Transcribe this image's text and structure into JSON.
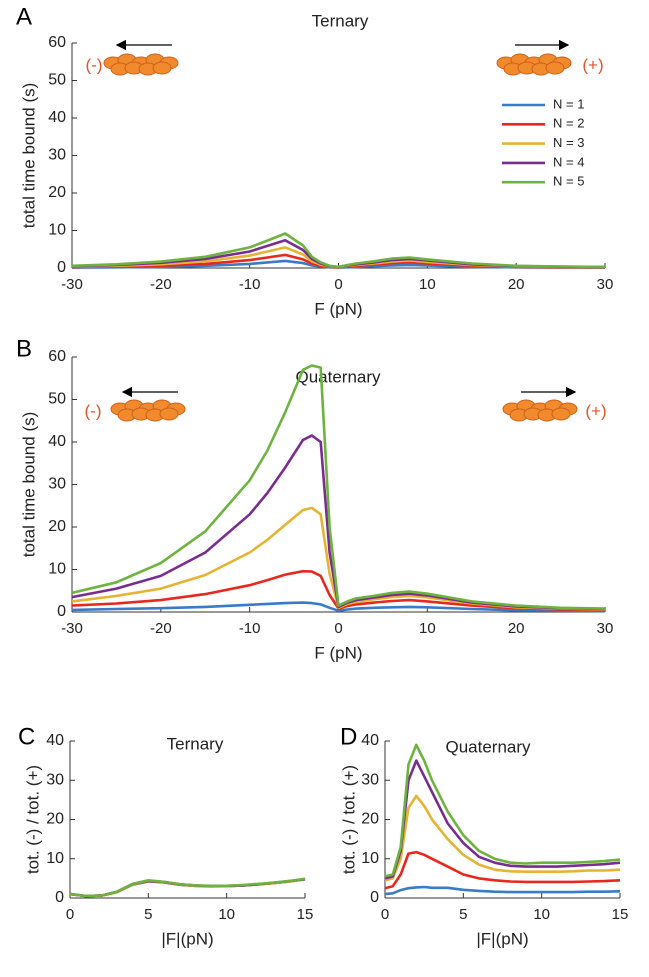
{
  "chart_data": [
    {
      "type": "line",
      "panel": "A",
      "title": "Ternary",
      "xlabel": "F (pN)",
      "ylabel": "total time bound (s)",
      "annotations": [
        "(-)",
        "(+)"
      ],
      "legend": "upper right",
      "x": [
        -30,
        -25,
        -20,
        -15,
        -10,
        -8,
        -6,
        -4,
        -3,
        -2,
        -1,
        0,
        1,
        2,
        4,
        6,
        8,
        10,
        15,
        20,
        25,
        30
      ],
      "xlim": [
        -30,
        30
      ],
      "xticks": [
        -30,
        -20,
        -10,
        0,
        10,
        20,
        30
      ],
      "ylim": [
        0,
        60
      ],
      "yticks": [
        0,
        10,
        20,
        30,
        40,
        50,
        60
      ],
      "series": [
        {
          "name": "N = 1",
          "color": "#3a7bc8",
          "values": [
            0.1,
            0.2,
            0.3,
            0.6,
            1.1,
            1.5,
            1.9,
            1.3,
            0.7,
            0.4,
            0.2,
            0.1,
            0.2,
            0.3,
            0.5,
            0.7,
            0.8,
            0.7,
            0.3,
            0.2,
            0.1,
            0.1
          ]
        },
        {
          "name": "N = 2",
          "color": "#e8281e",
          "values": [
            0.25,
            0.4,
            0.6,
            1.1,
            2.1,
            2.8,
            3.5,
            2.3,
            1.2,
            0.6,
            0.3,
            0.15,
            0.4,
            0.6,
            0.9,
            1.3,
            1.5,
            1.2,
            0.6,
            0.3,
            0.2,
            0.15
          ]
        },
        {
          "name": "N = 3",
          "color": "#e6b433",
          "values": [
            0.4,
            0.6,
            1,
            1.8,
            3.3,
            4.4,
            5.5,
            3.6,
            1.8,
            0.9,
            0.4,
            0.2,
            0.6,
            0.8,
            1.2,
            1.7,
            2,
            1.6,
            0.8,
            0.4,
            0.3,
            0.2
          ]
        },
        {
          "name": "N = 4",
          "color": "#7a2d8f",
          "values": [
            0.5,
            0.8,
            1.4,
            2.4,
            4.4,
            5.9,
            7.4,
            4.8,
            2.4,
            1.2,
            0.5,
            0.25,
            0.7,
            1,
            1.5,
            2.1,
            2.4,
            2,
            1,
            0.5,
            0.35,
            0.25
          ]
        },
        {
          "name": "N = 5",
          "color": "#6db33f",
          "values": [
            0.6,
            1,
            1.7,
            3,
            5.5,
            7.3,
            9.2,
            6,
            3,
            1.5,
            0.6,
            0.3,
            0.8,
            1.2,
            1.8,
            2.5,
            2.8,
            2.3,
            1.2,
            0.6,
            0.4,
            0.3
          ]
        }
      ]
    },
    {
      "type": "line",
      "panel": "B",
      "title": "Quaternary",
      "xlabel": "F (pN)",
      "ylabel": "total time bound (s)",
      "annotations": [
        "(-)",
        "(+)"
      ],
      "x": [
        -30,
        -25,
        -20,
        -15,
        -10,
        -8,
        -6,
        -4,
        -3,
        -2,
        -1,
        0,
        1,
        2,
        4,
        6,
        8,
        10,
        15,
        20,
        25,
        30
      ],
      "xlim": [
        -30,
        30
      ],
      "xticks": [
        -30,
        -20,
        -10,
        0,
        10,
        20,
        30
      ],
      "ylim": [
        0,
        60
      ],
      "yticks": [
        0,
        10,
        20,
        30,
        40,
        50,
        60
      ],
      "series": [
        {
          "color": "#3a7bc8",
          "values": [
            0.5,
            0.7,
            0.9,
            1.2,
            1.7,
            1.9,
            2.1,
            2.2,
            2.1,
            1.8,
            1,
            0.3,
            0.6,
            0.8,
            1,
            1.1,
            1.2,
            1.1,
            0.7,
            0.4,
            0.3,
            0.2
          ]
        },
        {
          "color": "#e8281e",
          "values": [
            1.5,
            2,
            2.8,
            4.2,
            6.3,
            7.5,
            8.8,
            9.6,
            9.5,
            8.5,
            4,
            0.8,
            1.4,
            1.8,
            2.2,
            2.6,
            2.8,
            2.5,
            1.5,
            0.9,
            0.6,
            0.5
          ]
        },
        {
          "color": "#e6b433",
          "values": [
            2.5,
            3.8,
            5.5,
            8.7,
            14,
            17,
            20.5,
            24,
            24.5,
            23,
            9,
            1,
            1.9,
            2.4,
            3,
            3.5,
            3.8,
            3.4,
            2,
            1.1,
            0.8,
            0.6
          ]
        },
        {
          "color": "#7a2d8f",
          "values": [
            3.5,
            5.5,
            8.5,
            14,
            23,
            28,
            34,
            40.5,
            41.5,
            40,
            14,
            1.2,
            2.2,
            2.8,
            3.4,
            4,
            4.3,
            3.9,
            2.2,
            1.3,
            0.9,
            0.7
          ]
        },
        {
          "color": "#6db33f",
          "values": [
            4.5,
            7,
            11.5,
            19,
            31,
            38,
            47,
            57,
            58,
            57.5,
            20,
            1.5,
            2.5,
            3.2,
            3.8,
            4.5,
            4.8,
            4.3,
            2.5,
            1.5,
            1,
            0.8
          ]
        }
      ]
    },
    {
      "type": "line",
      "panel": "C",
      "title": "Ternary",
      "xlabel": "|F|(pN)",
      "ylabel": "tot. (-) / tot. (+)",
      "x": [
        0,
        1,
        2,
        3,
        4,
        5,
        6,
        7,
        8,
        9,
        10,
        11,
        12,
        13,
        14,
        15
      ],
      "xlim": [
        0,
        15
      ],
      "xticks": [
        0,
        5,
        10,
        15
      ],
      "ylim": [
        0,
        40
      ],
      "yticks": [
        0,
        10,
        20,
        30,
        40
      ],
      "series": [
        {
          "color": "#3a7bc8",
          "values": [
            1,
            0.5,
            0.6,
            1.5,
            3.4,
            4.2,
            4,
            3.4,
            3.1,
            3,
            3,
            3.2,
            3.5,
            3.8,
            4.2,
            4.8
          ]
        },
        {
          "color": "#e8281e",
          "values": [
            1,
            0.5,
            0.6,
            1.5,
            3.5,
            4.3,
            4,
            3.4,
            3.1,
            3,
            3,
            3.2,
            3.5,
            3.8,
            4.2,
            4.8
          ]
        },
        {
          "color": "#e6b433",
          "values": [
            1,
            0.5,
            0.6,
            1.5,
            3.5,
            4.4,
            4.1,
            3.5,
            3.1,
            3,
            3,
            3.2,
            3.5,
            3.8,
            4.2,
            4.8
          ]
        },
        {
          "color": "#7a2d8f",
          "values": [
            1,
            0.5,
            0.6,
            1.6,
            3.6,
            4.4,
            4.1,
            3.5,
            3.2,
            3,
            3.1,
            3.2,
            3.5,
            3.9,
            4.3,
            4.8
          ]
        },
        {
          "color": "#6db33f",
          "values": [
            1,
            0.5,
            0.6,
            1.6,
            3.6,
            4.5,
            4.1,
            3.5,
            3.2,
            3.1,
            3.1,
            3.3,
            3.6,
            3.9,
            4.3,
            4.9
          ]
        }
      ]
    },
    {
      "type": "line",
      "panel": "D",
      "title": "Quaternary",
      "xlabel": "|F|(pN)",
      "ylabel": "tot. (-) / tot. (+)",
      "x": [
        0,
        0.5,
        1,
        1.5,
        2,
        2.5,
        3,
        4,
        5,
        6,
        7,
        8,
        9,
        10,
        11,
        12,
        13,
        14,
        15
      ],
      "xlim": [
        0,
        15
      ],
      "xticks": [
        0,
        5,
        10,
        15
      ],
      "ylim": [
        0,
        40
      ],
      "yticks": [
        0,
        10,
        20,
        30,
        40
      ],
      "series": [
        {
          "color": "#3a7bc8",
          "values": [
            1,
            1.2,
            2,
            2.5,
            2.7,
            2.8,
            2.6,
            2.6,
            2.1,
            1.8,
            1.6,
            1.5,
            1.5,
            1.5,
            1.5,
            1.5,
            1.6,
            1.6,
            1.7
          ]
        },
        {
          "color": "#e8281e",
          "values": [
            2.5,
            3,
            6,
            11.3,
            11.7,
            11,
            10,
            8,
            6,
            5,
            4.5,
            4.2,
            4.1,
            4.1,
            4.1,
            4.1,
            4.2,
            4.3,
            4.5
          ]
        },
        {
          "color": "#e6b433",
          "values": [
            4.5,
            5,
            10,
            23,
            26,
            23.5,
            20,
            15,
            11,
            8.5,
            7.2,
            6.8,
            6.7,
            6.7,
            6.7,
            6.8,
            7,
            7,
            7.2
          ]
        },
        {
          "color": "#7a2d8f",
          "values": [
            5,
            5.5,
            12,
            30,
            35,
            31,
            27,
            19,
            14,
            10.5,
            9,
            8.2,
            8,
            8,
            8,
            8.2,
            8.4,
            8.6,
            9
          ]
        },
        {
          "color": "#6db33f",
          "values": [
            5.5,
            6,
            13,
            34,
            39,
            35,
            30,
            22,
            16,
            12,
            10,
            9,
            8.8,
            9,
            9,
            9,
            9.2,
            9.4,
            9.8
          ]
        }
      ]
    }
  ]
}
